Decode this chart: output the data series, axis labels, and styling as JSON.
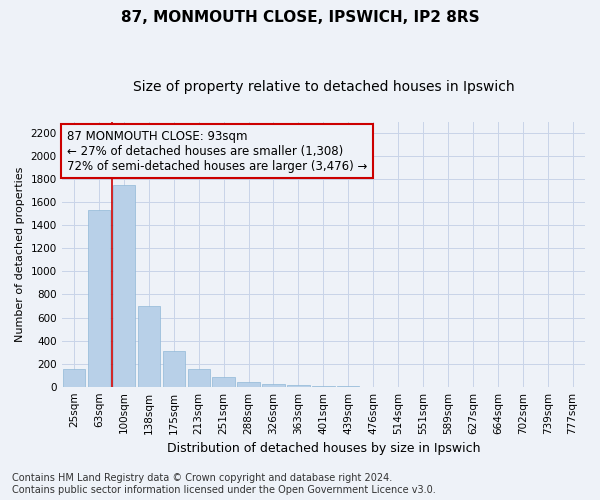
{
  "title1": "87, MONMOUTH CLOSE, IPSWICH, IP2 8RS",
  "title2": "Size of property relative to detached houses in Ipswich",
  "xlabel": "Distribution of detached houses by size in Ipswich",
  "ylabel": "Number of detached properties",
  "categories": [
    "25sqm",
    "63sqm",
    "100sqm",
    "138sqm",
    "175sqm",
    "213sqm",
    "251sqm",
    "288sqm",
    "326sqm",
    "363sqm",
    "401sqm",
    "439sqm",
    "476sqm",
    "514sqm",
    "551sqm",
    "589sqm",
    "627sqm",
    "664sqm",
    "702sqm",
    "739sqm",
    "777sqm"
  ],
  "values": [
    155,
    1530,
    1750,
    700,
    310,
    155,
    80,
    42,
    22,
    14,
    5,
    2,
    1,
    0,
    0,
    0,
    0,
    0,
    0,
    0,
    0
  ],
  "bar_color": "#b8d0e8",
  "bar_edge_color": "#90b8d8",
  "grid_color": "#c8d4e8",
  "annotation_box_color": "#cc0000",
  "annotation_line1": "87 MONMOUTH CLOSE: 93sqm",
  "annotation_line2": "← 27% of detached houses are smaller (1,308)",
  "annotation_line3": "72% of semi-detached houses are larger (3,476) →",
  "vline_color": "#cc0000",
  "vline_x": 1.5,
  "ylim": [
    0,
    2300
  ],
  "yticks": [
    0,
    200,
    400,
    600,
    800,
    1000,
    1200,
    1400,
    1600,
    1800,
    2000,
    2200
  ],
  "footnote1": "Contains HM Land Registry data © Crown copyright and database right 2024.",
  "footnote2": "Contains public sector information licensed under the Open Government Licence v3.0.",
  "title1_fontsize": 11,
  "title2_fontsize": 10,
  "xlabel_fontsize": 9,
  "ylabel_fontsize": 8,
  "tick_fontsize": 7.5,
  "annotation_fontsize": 8.5,
  "footnote_fontsize": 7,
  "background_color": "#eef2f8"
}
